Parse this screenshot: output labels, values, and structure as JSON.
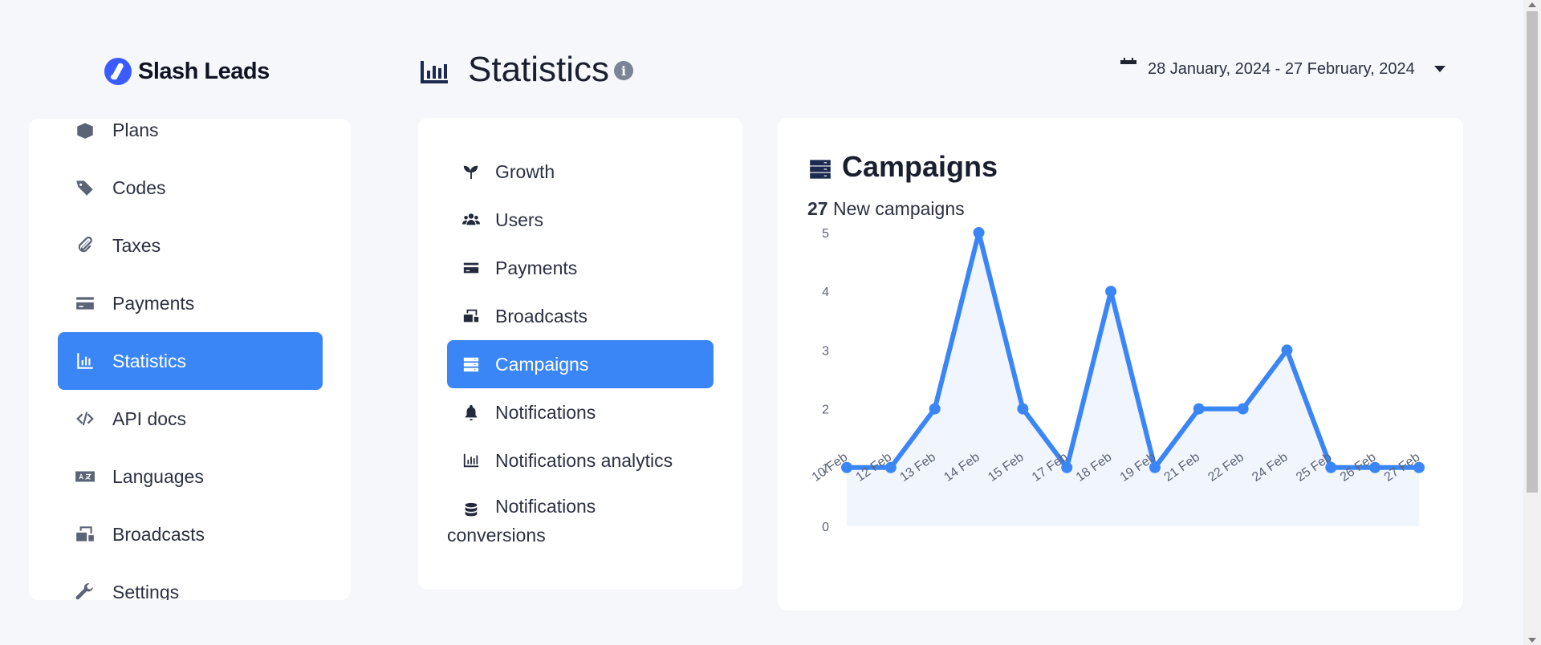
{
  "brand": {
    "name": "Slash Leads"
  },
  "sidebar": {
    "items": [
      {
        "label": "Plans",
        "icon": "box-icon"
      },
      {
        "label": "Codes",
        "icon": "tags-icon"
      },
      {
        "label": "Taxes",
        "icon": "paperclip-icon"
      },
      {
        "label": "Payments",
        "icon": "credit-card-icon"
      },
      {
        "label": "Statistics",
        "icon": "bar-chart-icon",
        "active": true
      },
      {
        "label": "API docs",
        "icon": "code-icon"
      },
      {
        "label": "Languages",
        "icon": "language-icon"
      },
      {
        "label": "Broadcasts",
        "icon": "mail-bulk-icon"
      },
      {
        "label": "Settings",
        "icon": "wrench-icon"
      }
    ]
  },
  "header": {
    "title": "Statistics",
    "date_range": "28 January, 2024 - 27 February, 2024"
  },
  "subnav": {
    "items": [
      {
        "label": "Growth",
        "icon": "seedling-icon"
      },
      {
        "label": "Users",
        "icon": "users-icon"
      },
      {
        "label": "Payments",
        "icon": "credit-card-icon"
      },
      {
        "label": "Broadcasts",
        "icon": "mail-bulk-icon"
      },
      {
        "label": "Campaigns",
        "icon": "server-icon",
        "active": true
      },
      {
        "label": "Notifications",
        "icon": "bell-icon"
      },
      {
        "label": "Notifications analytics",
        "icon": "bar-chart-icon"
      },
      {
        "label": "Notifications conversions",
        "icon": "database-icon"
      }
    ]
  },
  "card": {
    "title": "Campaigns",
    "count": "27",
    "count_label": "New campaigns"
  },
  "chart_data": {
    "type": "line",
    "categories": [
      "10 Feb",
      "12 Feb",
      "13 Feb",
      "14 Feb",
      "15 Feb",
      "17 Feb",
      "18 Feb",
      "19 Feb",
      "21 Feb",
      "22 Feb",
      "24 Feb",
      "25 Feb",
      "26 Feb",
      "27 Feb"
    ],
    "values": [
      1,
      1,
      2,
      5,
      2,
      1,
      4,
      1,
      2,
      2,
      3,
      1,
      1,
      1
    ],
    "ylim": [
      0,
      5
    ],
    "yticks": [
      0,
      1,
      2,
      3,
      4,
      5
    ],
    "line_color": "#3b86f7",
    "fill_color": "#eef2fd",
    "grid": false,
    "legend": "none"
  }
}
